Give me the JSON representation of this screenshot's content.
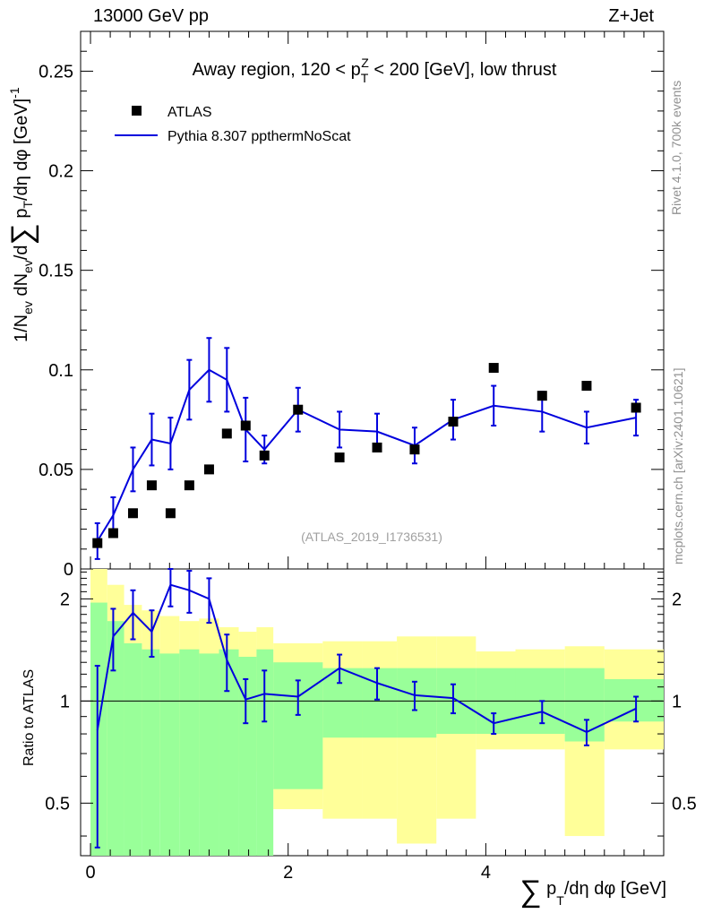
{
  "header": {
    "left": "13000 GeV pp",
    "right": "Z+Jet"
  },
  "side": {
    "rivet": "Rivet 4.1.0,  700k events",
    "mcplots": "mcplots.cern.ch [arXiv:2401.10621]"
  },
  "chart_data": {
    "type": "scatter",
    "title": "Away region, 120 < p_T^Z < 200 [GeV], low thrust",
    "watermark": "(ATLAS_2019_I1736531)",
    "xlabel": "∑ p_T/dη dφ [GeV]",
    "ylabel": "1/N_ev dN_ev/d∑ p_T/dη dφ [GeV]^-1",
    "ratio_ylabel": "Ratio to ATLAS",
    "xlim": [
      -0.1,
      5.8
    ],
    "ylim": [
      0,
      0.27
    ],
    "ratio_ylim": [
      0.35,
      2.45
    ],
    "x_ticks": [
      "0",
      "2",
      "4"
    ],
    "y_ticks": [
      "0",
      "0.05",
      "0.1",
      "0.15",
      "0.2",
      "0.25"
    ],
    "ratio_ticks": [
      "0.5",
      "1",
      "2"
    ],
    "legend": {
      "data_label": "ATLAS",
      "mc_label": "Pythia 8.307 ppthermNoScat",
      "placement": "top-left"
    },
    "colors": {
      "mc": "#0000dd",
      "band_inner": "#99ff99",
      "band_outer": "#ffff99"
    },
    "bins": [
      0,
      0.17,
      0.34,
      0.52,
      0.7,
      0.9,
      1.1,
      1.3,
      1.5,
      1.68,
      1.85,
      2.35,
      2.75,
      3.1,
      3.5,
      3.9,
      4.3,
      4.8,
      5.2,
      5.8
    ],
    "data": {
      "x": [
        0.07,
        0.23,
        0.43,
        0.62,
        0.81,
        1.0,
        1.2,
        1.38,
        1.57,
        1.76,
        2.1,
        2.52,
        2.9,
        3.28,
        3.67,
        4.08,
        4.57,
        5.02,
        5.52
      ],
      "y": [
        0.013,
        0.018,
        0.028,
        0.042,
        0.028,
        0.042,
        0.05,
        0.068,
        0.072,
        0.057,
        0.08,
        0.056,
        0.061,
        0.06,
        0.074,
        0.101,
        0.087,
        0.092,
        0.081
      ]
    },
    "mc": {
      "x": [
        0.07,
        0.23,
        0.43,
        0.62,
        0.81,
        1.0,
        1.2,
        1.38,
        1.57,
        1.76,
        2.1,
        2.52,
        2.9,
        3.28,
        3.67,
        4.08,
        4.57,
        5.02,
        5.52
      ],
      "y": [
        0.014,
        0.027,
        0.05,
        0.065,
        0.063,
        0.09,
        0.1,
        0.095,
        0.07,
        0.06,
        0.08,
        0.07,
        0.069,
        0.062,
        0.075,
        0.082,
        0.079,
        0.071,
        0.076
      ],
      "yerr": [
        0.009,
        0.009,
        0.011,
        0.013,
        0.013,
        0.015,
        0.016,
        0.016,
        0.016,
        0.007,
        0.011,
        0.009,
        0.009,
        0.009,
        0.01,
        0.01,
        0.01,
        0.008,
        0.009
      ]
    },
    "ratio": {
      "y": [
        0.82,
        1.55,
        1.82,
        1.6,
        2.2,
        2.12,
        2.0,
        1.32,
        1.01,
        1.05,
        1.03,
        1.25,
        1.13,
        1.04,
        1.02,
        0.86,
        0.93,
        0.81,
        0.95
      ],
      "yerr": [
        0.45,
        0.32,
        0.3,
        0.25,
        0.3,
        0.3,
        0.3,
        0.25,
        0.15,
        0.18,
        0.12,
        0.12,
        0.12,
        0.1,
        0.1,
        0.06,
        0.07,
        0.07,
        0.08
      ],
      "band_inner": [
        [
          0.35,
          1.95
        ],
        [
          0.35,
          1.72
        ],
        [
          0.35,
          1.48
        ],
        [
          0.35,
          1.42
        ],
        [
          0.35,
          1.38
        ],
        [
          0.35,
          1.42
        ],
        [
          0.35,
          1.38
        ],
        [
          0.35,
          1.42
        ],
        [
          0.35,
          1.35
        ],
        [
          0.35,
          1.42
        ],
        [
          0.55,
          1.3
        ],
        [
          0.78,
          1.25
        ],
        [
          0.78,
          1.25
        ],
        [
          0.78,
          1.25
        ],
        [
          0.8,
          1.25
        ],
        [
          0.8,
          1.25
        ],
        [
          0.8,
          1.25
        ],
        [
          0.76,
          1.25
        ],
        [
          0.87,
          1.16
        ]
      ],
      "band_outer": [
        [
          0.35,
          2.45
        ],
        [
          0.35,
          2.2
        ],
        [
          0.45,
          1.92
        ],
        [
          0.5,
          1.85
        ],
        [
          0.52,
          1.78
        ],
        [
          0.52,
          1.72
        ],
        [
          0.47,
          1.75
        ],
        [
          0.62,
          1.65
        ],
        [
          0.62,
          1.6
        ],
        [
          0.68,
          1.65
        ],
        [
          0.48,
          1.48
        ],
        [
          0.45,
          1.5
        ],
        [
          0.45,
          1.5
        ],
        [
          0.38,
          1.55
        ],
        [
          0.45,
          1.55
        ],
        [
          0.72,
          1.4
        ],
        [
          0.72,
          1.42
        ],
        [
          0.4,
          1.45
        ],
        [
          0.72,
          1.42
        ]
      ]
    }
  }
}
